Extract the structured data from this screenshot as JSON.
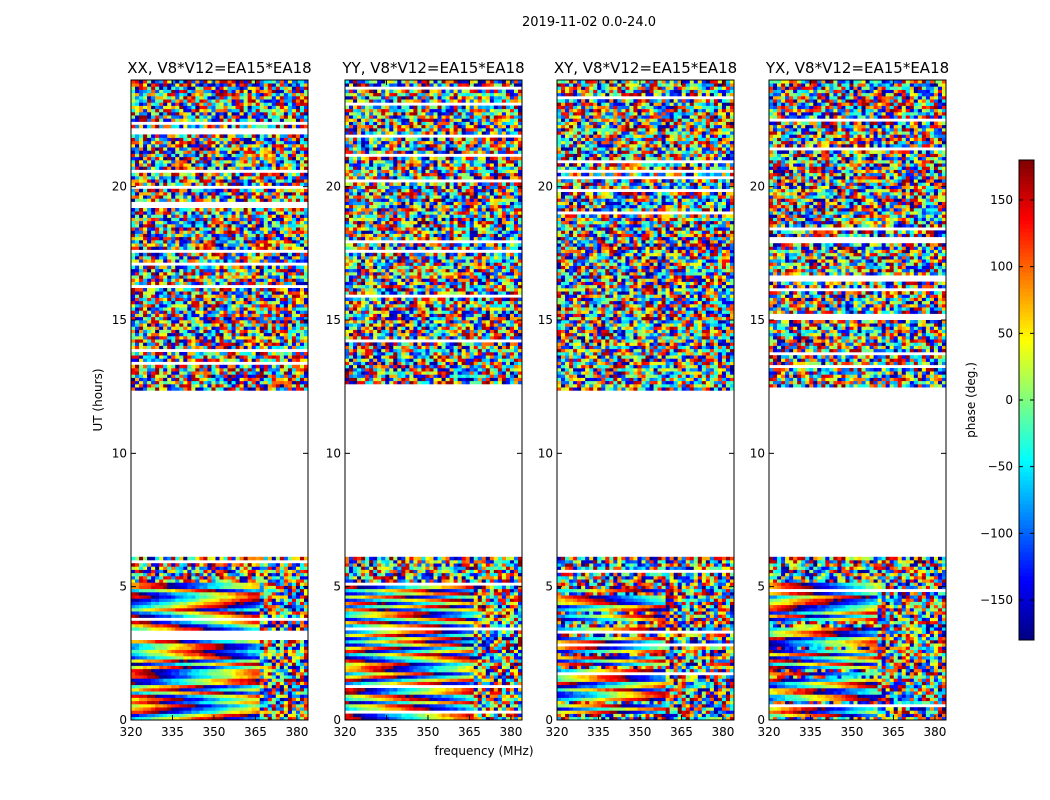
{
  "figure_title": "2019-11-02 0.0-24.0",
  "chart_data": {
    "type": "heatmap",
    "xlabel": "frequency (MHz)",
    "ylabel": "UT (hours)",
    "xlim": [
      320,
      384
    ],
    "ylim": [
      0,
      24
    ],
    "xticks": [
      320,
      335,
      350,
      365,
      380
    ],
    "yticks": [
      0,
      5,
      10,
      15,
      20
    ],
    "panels": [
      {
        "title": "XX, V8*V12=EA15*EA18",
        "pol": "XX"
      },
      {
        "title": "YY, V8*V12=EA15*EA18",
        "pol": "YY"
      },
      {
        "title": "XY, V8*V12=EA15*EA18",
        "pol": "XY"
      },
      {
        "title": "YX, V8*V12=EA15*EA18",
        "pol": "YX"
      }
    ],
    "colorbar": {
      "label": "phase (deg.)",
      "range": [
        -180,
        180
      ],
      "ticks": [
        -150,
        -100,
        -50,
        0,
        50,
        100,
        150
      ],
      "colormap": "jet"
    },
    "data_coverage_hours": [
      [
        0,
        6.1
      ],
      [
        12.3,
        24
      ]
    ],
    "flagged_gap_hours": [
      6.1,
      12.3
    ]
  }
}
